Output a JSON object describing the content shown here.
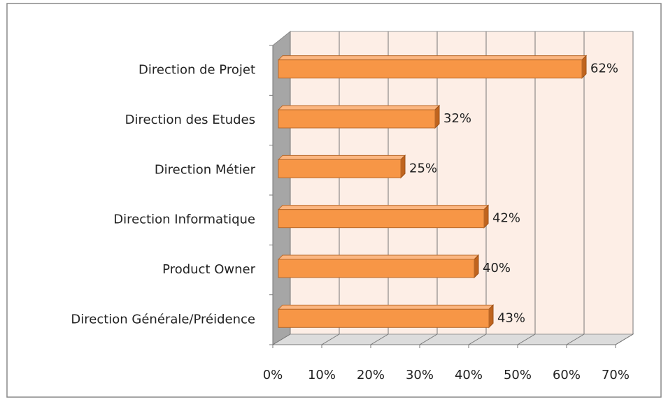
{
  "chart_data": {
    "type": "bar",
    "orientation": "horizontal",
    "three_d": true,
    "categories": [
      "Direction de Projet",
      "Direction des Etudes",
      "Direction Métier",
      "Direction Informatique",
      "Product Owner",
      "Direction Générale/Préidence"
    ],
    "values": [
      62,
      32,
      25,
      42,
      40,
      43
    ],
    "value_labels": [
      "62%",
      "32%",
      "25%",
      "42%",
      "40%",
      "43%"
    ],
    "color": "#f79646",
    "xlim": [
      0,
      70
    ],
    "xticks": [
      {
        "value": 0,
        "label": "0%"
      },
      {
        "value": 10,
        "label": "10%"
      },
      {
        "value": 20,
        "label": "20%"
      },
      {
        "value": 30,
        "label": "30%"
      },
      {
        "value": 40,
        "label": "40%"
      },
      {
        "value": 50,
        "label": "50%"
      },
      {
        "value": 60,
        "label": "60%"
      },
      {
        "value": 70,
        "label": "70%"
      }
    ],
    "grid": true
  }
}
